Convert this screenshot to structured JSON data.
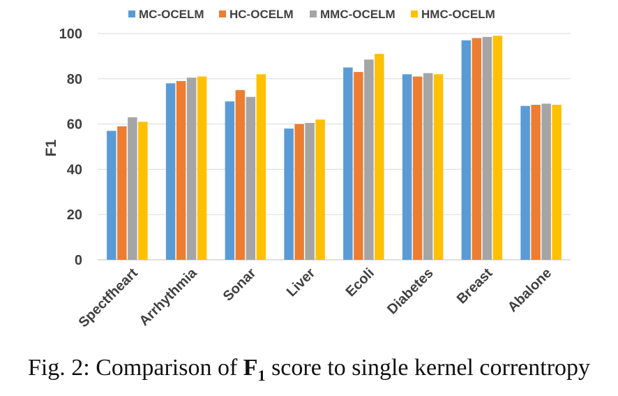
{
  "chart_data": {
    "type": "bar",
    "ylabel": "F1",
    "ylim": [
      0,
      100
    ],
    "yticks": [
      0,
      20,
      40,
      60,
      80,
      100
    ],
    "grid": true,
    "legend_position": "top",
    "categories": [
      "Spectfheart",
      "Arrhythmia",
      "Sonar",
      "Liver",
      "Ecoli",
      "Diabetes",
      "Breast",
      "Abalone"
    ],
    "series": [
      {
        "name": "MC-OCELM",
        "color": "#5B9BD5",
        "values": [
          57,
          78,
          70,
          58,
          85,
          82,
          97,
          68
        ]
      },
      {
        "name": "HC-OCELM",
        "color": "#ED7D31",
        "values": [
          59,
          79,
          75,
          60,
          83,
          81,
          98,
          68.5
        ]
      },
      {
        "name": "MMC-OCELM",
        "color": "#A5A5A5",
        "values": [
          63,
          80.5,
          72,
          60.5,
          88.5,
          82.5,
          98.5,
          69
        ]
      },
      {
        "name": "HMC-OCELM",
        "color": "#FFC000",
        "values": [
          61,
          81,
          82,
          62,
          91,
          82,
          99,
          68.5
        ]
      }
    ]
  },
  "caption": {
    "prefix": "Fig. 2: Comparison of ",
    "symbol": "F",
    "subscript": "1",
    "suffix": " score to single kernel correntropy"
  }
}
